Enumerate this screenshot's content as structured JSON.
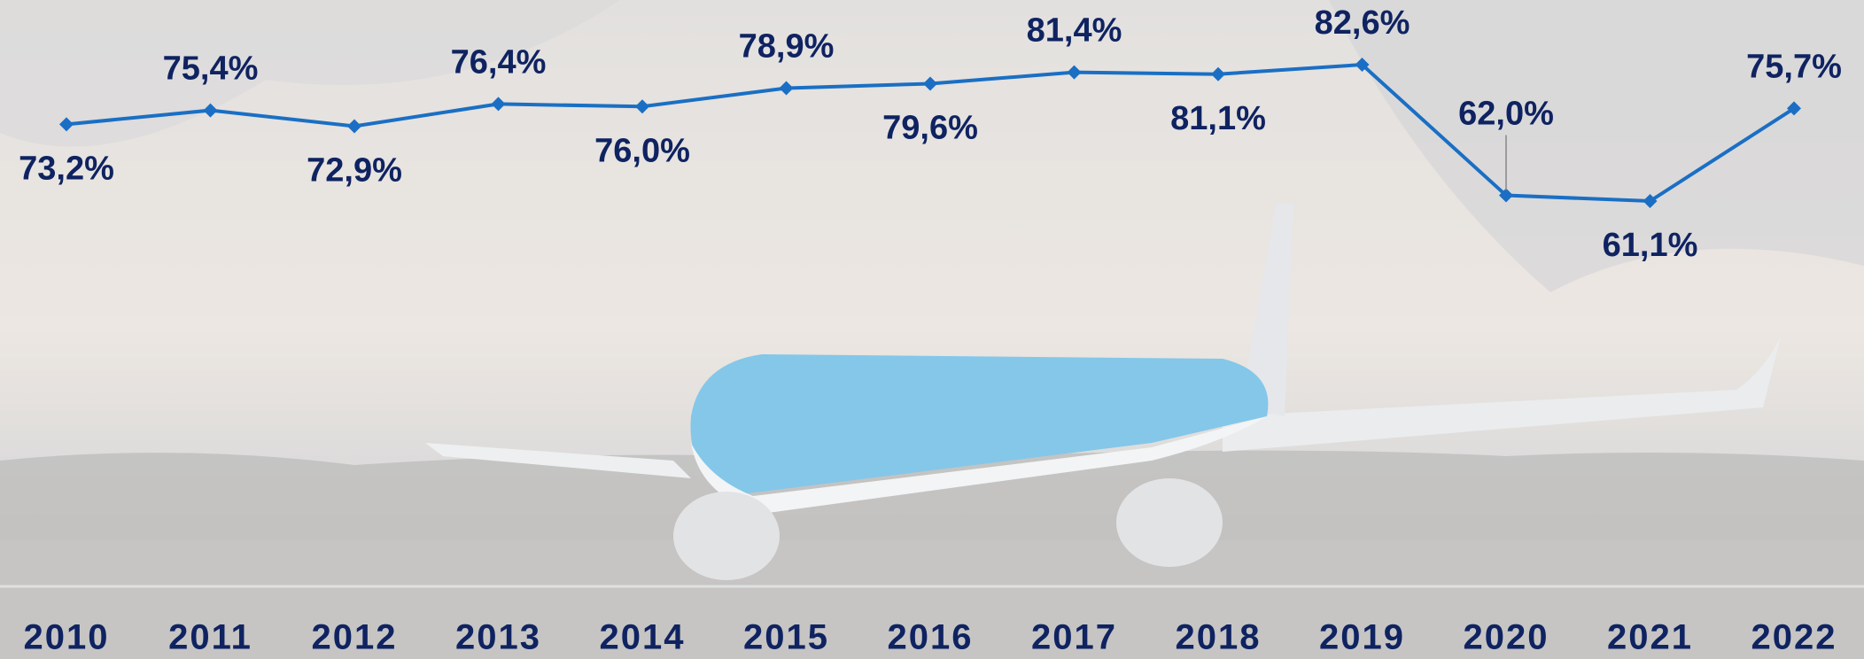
{
  "chart_data": {
    "type": "line",
    "categories": [
      "2010",
      "2011",
      "2012",
      "2013",
      "2014",
      "2015",
      "2016",
      "2017",
      "2018",
      "2019",
      "2020",
      "2021",
      "2022"
    ],
    "values": [
      73.2,
      75.4,
      72.9,
      76.4,
      76.0,
      78.9,
      79.6,
      81.4,
      81.1,
      82.6,
      62.0,
      61.1,
      75.7
    ],
    "value_labels": [
      "73,2%",
      "75,4%",
      "72,9%",
      "76,4%",
      "76,0%",
      "78,9%",
      "79,6%",
      "81,4%",
      "81,1%",
      "82,6%",
      "62,0%",
      "61,1%",
      "75,7%"
    ],
    "color": "#1a6fc4"
  }
}
